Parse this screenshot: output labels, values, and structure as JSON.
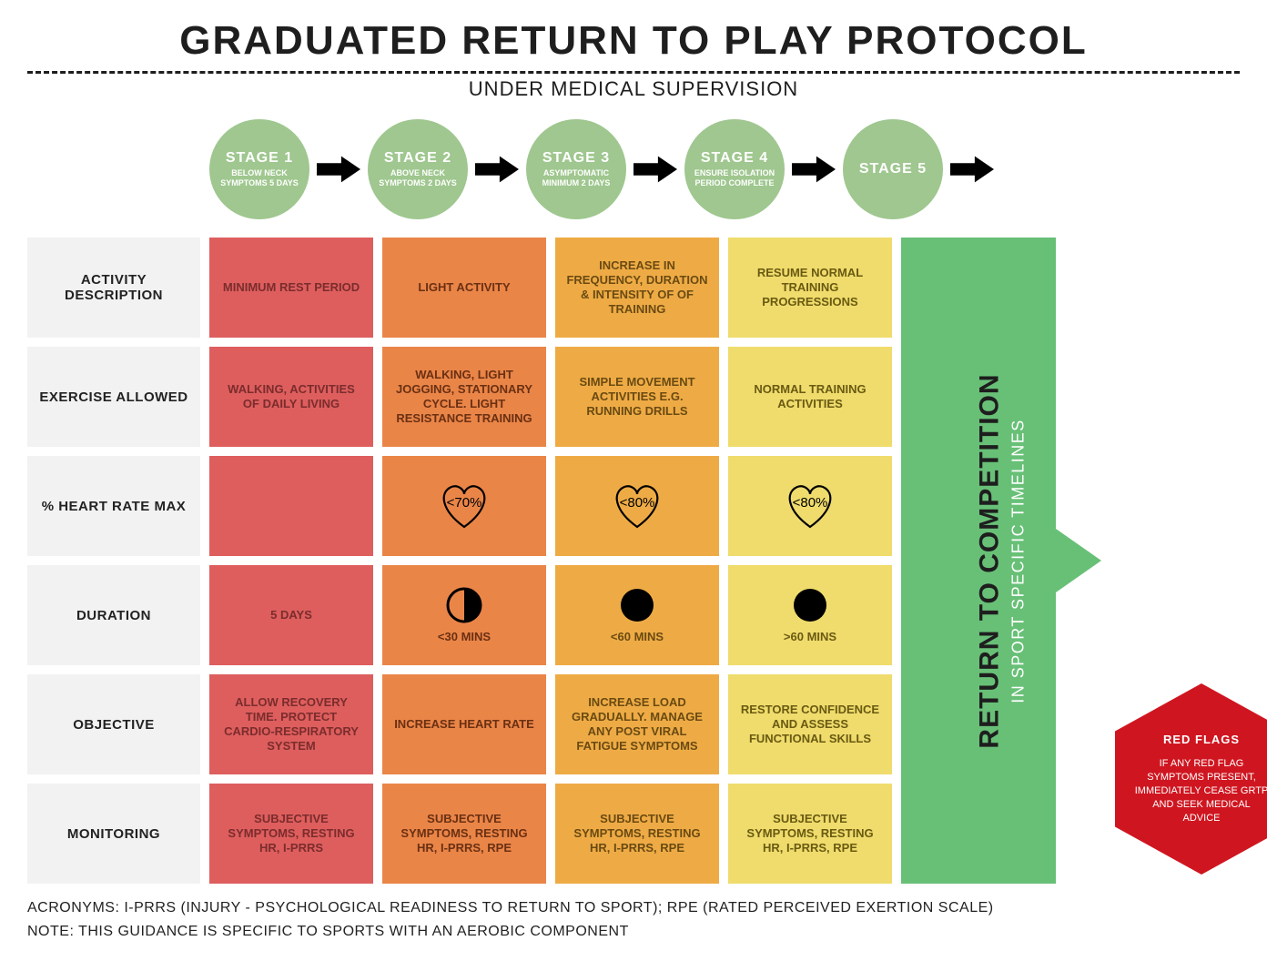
{
  "title": "GRADUATED RETURN TO PLAY PROTOCOL",
  "subtitle": "UNDER MEDICAL SUPERVISION",
  "colors": {
    "stage_circle": "#9fc78f",
    "arrow": "#000000",
    "stage1": "#de5e5e",
    "stage2": "#ea8548",
    "stage3": "#eeab45",
    "stage4": "#efdc6c",
    "stage5": "#68c077",
    "row_label_bg": "#f2f2f2",
    "redflag": "#cf1620",
    "text_dark": "#1e1e1e",
    "text_stage1": "#7b2c2c",
    "text_stage2": "#6a3012",
    "text_stage3": "#6a4a12",
    "text_stage4": "#6a5a12"
  },
  "stages": [
    {
      "label": "STAGE 1",
      "sub": "BELOW NECK SYMPTOMS 5 DAYS"
    },
    {
      "label": "STAGE 2",
      "sub": "ABOVE NECK SYMPTOMS 2 DAYS"
    },
    {
      "label": "STAGE 3",
      "sub": "ASYMPTOMATIC MINIMUM 2 DAYS"
    },
    {
      "label": "STAGE 4",
      "sub": "ENSURE ISOLATION PERIOD COMPLETE"
    },
    {
      "label": "STAGE 5",
      "sub": ""
    }
  ],
  "rows": [
    {
      "label": "ACTIVITY DESCRIPTION",
      "cells": [
        "MINIMUM REST PERIOD",
        "LIGHT ACTIVITY",
        "INCREASE IN FREQUENCY, DURATION & INTENSITY OF  OF TRAINING",
        "RESUME NORMAL TRAINING PROGRESSIONS"
      ]
    },
    {
      "label": "EXERCISE ALLOWED",
      "cells": [
        "WALKING, ACTIVITIES OF DAILY LIVING",
        "WALKING, LIGHT JOGGING, STATIONARY CYCLE. LIGHT RESISTANCE TRAINING",
        "SIMPLE MOVEMENT ACTIVITIES E.G. RUNNING DRILLS",
        "NORMAL TRAINING ACTIVITIES"
      ]
    },
    {
      "label": "% HEART RATE MAX",
      "type": "heart",
      "cells": [
        "",
        "<70%",
        "<80%",
        "<80%"
      ]
    },
    {
      "label": "DURATION",
      "type": "duration",
      "cells": [
        "5 DAYS",
        "<30 MINS",
        "<60 MINS",
        ">60 MINS"
      ],
      "icons": [
        "none",
        "half",
        "full",
        "full"
      ]
    },
    {
      "label": "OBJECTIVE",
      "cells": [
        "ALLOW RECOVERY TIME. PROTECT CARDIO-RESPIRATORY SYSTEM",
        "INCREASE HEART RATE",
        "INCREASE LOAD GRADUALLY. MANAGE ANY POST VIRAL FATIGUE SYMPTOMS",
        "RESTORE CONFIDENCE AND ASSESS FUNCTIONAL SKILLS"
      ]
    },
    {
      "label": "MONITORING",
      "cells": [
        "SUBJECTIVE SYMPTOMS, RESTING HR, I-PRRS",
        "SUBJECTIVE SYMPTOMS, RESTING HR, I-PRRS, RPE",
        "SUBJECTIVE SYMPTOMS, RESTING HR, I-PRRS, RPE",
        "SUBJECTIVE SYMPTOMS, RESTING HR, I-PRRS, RPE"
      ]
    }
  ],
  "stage5": {
    "main": "RETURN TO COMPETITION",
    "sub": "IN SPORT SPECIFIC TIMELINES"
  },
  "redflag": {
    "title": "RED FLAGS",
    "body": "IF ANY RED FLAG SYMPTOMS PRESENT, IMMEDIATELY CEASE GRTP AND SEEK MEDICAL ADVICE"
  },
  "footer": {
    "line1": "ACRONYMS: I-PRRS (INJURY - PSYCHOLOGICAL READINESS TO RETURN TO SPORT); RPE (RATED PERCEIVED EXERTION SCALE)",
    "line2": "NOTE: THIS GUIDANCE IS SPECIFIC TO SPORTS WITH AN AEROBIC COMPONENT"
  }
}
